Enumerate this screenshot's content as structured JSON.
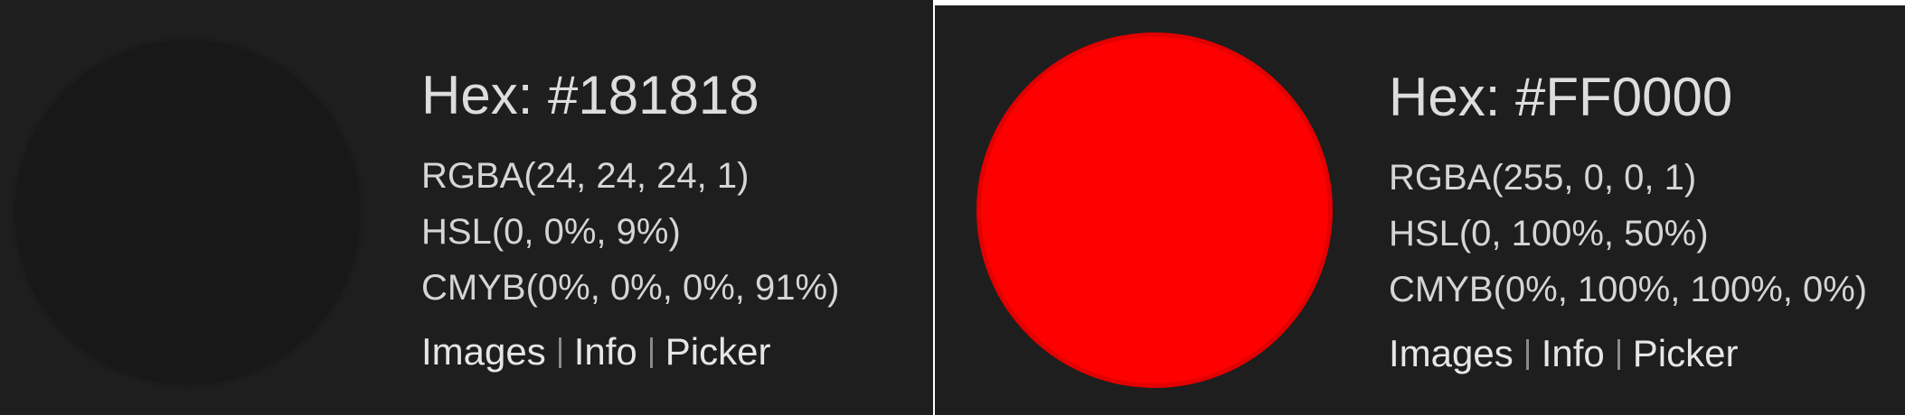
{
  "panels": [
    {
      "swatch_color": "#181818",
      "hex_label": "Hex: #181818",
      "rgba": "RGBA(24, 24, 24, 1)",
      "hsl": "HSL(0, 0%, 9%)",
      "cmyb": "CMYB(0%, 0%, 0%, 91%)",
      "links": [
        "Images",
        "Info",
        "Picker"
      ]
    },
    {
      "swatch_color": "#FF0000",
      "hex_label": "Hex: #FF0000",
      "rgba": "RGBA(255, 0, 0, 1)",
      "hsl": "HSL(0, 100%, 50%)",
      "cmyb": "CMYB(0%, 100%, 100%, 0%)",
      "links": [
        "Images",
        "Info",
        "Picker"
      ]
    }
  ],
  "colors": {
    "panel_background": "#1e1e1e",
    "text": "#d9d9d9",
    "separator": "#8a8a8a"
  }
}
